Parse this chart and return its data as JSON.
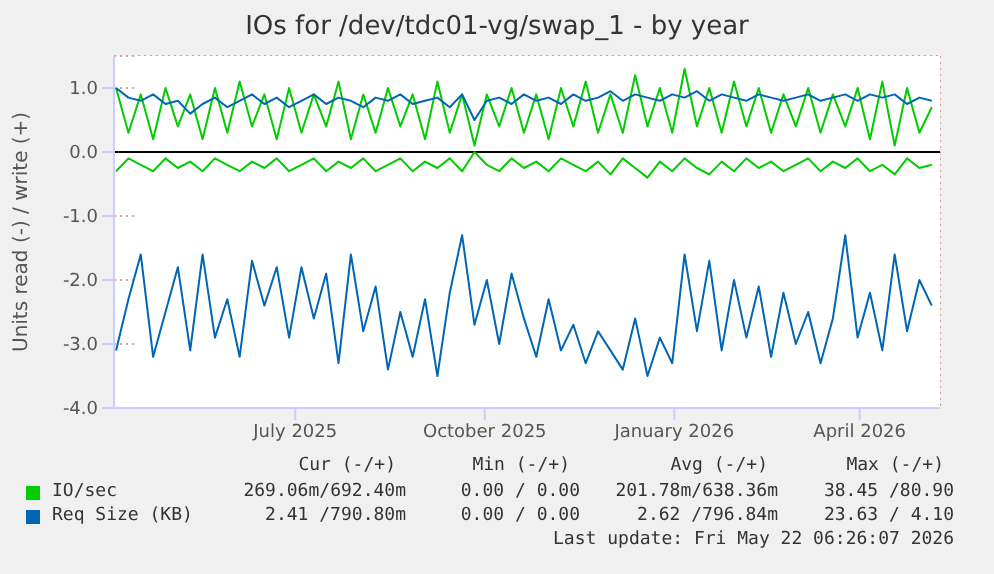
{
  "chart_data": {
    "type": "line",
    "title": "IOs for /dev/tdc01-vg/swap_1 - by year",
    "ylabel": "Units read (-) / write (+)",
    "x": [
      "2025-04-05",
      "2025-04-11",
      "2025-04-17",
      "2025-04-23",
      "2025-04-29",
      "2025-05-05",
      "2025-05-11",
      "2025-05-17",
      "2025-05-23",
      "2025-05-29",
      "2025-06-04",
      "2025-06-10",
      "2025-06-16",
      "2025-06-22",
      "2025-06-28",
      "2025-07-04",
      "2025-07-10",
      "2025-07-16",
      "2025-07-22",
      "2025-07-28",
      "2025-08-03",
      "2025-08-09",
      "2025-08-15",
      "2025-08-21",
      "2025-08-27",
      "2025-09-02",
      "2025-09-08",
      "2025-09-14",
      "2025-09-20",
      "2025-09-26",
      "2025-10-02",
      "2025-10-08",
      "2025-10-14",
      "2025-10-20",
      "2025-10-26",
      "2025-11-01",
      "2025-11-07",
      "2025-11-13",
      "2025-11-19",
      "2025-11-25",
      "2025-12-01",
      "2025-12-07",
      "2025-12-13",
      "2025-12-19",
      "2025-12-25",
      "2025-12-31",
      "2026-01-06",
      "2026-01-12",
      "2026-01-18",
      "2026-01-24",
      "2026-01-30",
      "2026-02-05",
      "2026-02-11",
      "2026-02-17",
      "2026-02-23",
      "2026-03-01",
      "2026-03-07",
      "2026-03-13",
      "2026-03-19",
      "2026-03-25",
      "2026-03-31",
      "2026-04-06",
      "2026-04-12",
      "2026-04-18",
      "2026-04-24",
      "2026-04-30",
      "2026-05-06"
    ],
    "series": [
      {
        "name": "IO/sec",
        "color": "#00cc00",
        "values": [
          1.0,
          0.3,
          0.9,
          0.2,
          1.0,
          0.4,
          0.9,
          0.2,
          1.0,
          0.3,
          1.1,
          0.4,
          0.9,
          0.2,
          1.0,
          0.3,
          0.9,
          0.4,
          1.1,
          0.2,
          0.9,
          0.3,
          1.0,
          0.4,
          0.9,
          0.2,
          1.1,
          0.3,
          0.9,
          0.1,
          0.9,
          0.4,
          1.0,
          0.3,
          0.9,
          0.2,
          1.0,
          0.4,
          1.1,
          0.3,
          0.9,
          0.3,
          1.2,
          0.4,
          1.0,
          0.3,
          1.3,
          0.4,
          1.0,
          0.3,
          1.1,
          0.4,
          1.0,
          0.3,
          0.9,
          0.4,
          1.0,
          0.3,
          0.9,
          0.4,
          1.0,
          0.2,
          1.1,
          0.1,
          1.0,
          0.3,
          0.7
        ]
      },
      {
        "color": "#00cc00",
        "values": [
          -0.3,
          -0.1,
          -0.2,
          -0.3,
          -0.1,
          -0.25,
          -0.15,
          -0.3,
          -0.1,
          -0.2,
          -0.3,
          -0.15,
          -0.25,
          -0.1,
          -0.3,
          -0.2,
          -0.1,
          -0.3,
          -0.15,
          -0.25,
          -0.1,
          -0.3,
          -0.2,
          -0.1,
          -0.3,
          -0.15,
          -0.25,
          -0.1,
          -0.3,
          -0.0,
          -0.2,
          -0.3,
          -0.1,
          -0.25,
          -0.15,
          -0.3,
          -0.1,
          -0.2,
          -0.3,
          -0.15,
          -0.35,
          -0.1,
          -0.25,
          -0.4,
          -0.15,
          -0.3,
          -0.1,
          -0.25,
          -0.35,
          -0.15,
          -0.3,
          -0.1,
          -0.25,
          -0.15,
          -0.3,
          -0.2,
          -0.1,
          -0.3,
          -0.15,
          -0.25,
          -0.1,
          -0.3,
          -0.2,
          -0.35,
          -0.1,
          -0.25,
          -0.2
        ]
      },
      {
        "name": "Req Size (KB)",
        "color": "#0066b3",
        "values": [
          1.0,
          0.85,
          0.8,
          0.9,
          0.75,
          0.8,
          0.6,
          0.75,
          0.85,
          0.7,
          0.8,
          0.9,
          0.75,
          0.85,
          0.7,
          0.8,
          0.9,
          0.75,
          0.85,
          0.8,
          0.7,
          0.85,
          0.8,
          0.9,
          0.75,
          0.8,
          0.85,
          0.7,
          0.9,
          0.5,
          0.8,
          0.85,
          0.75,
          0.9,
          0.8,
          0.85,
          0.75,
          0.9,
          0.8,
          0.85,
          0.95,
          0.8,
          0.9,
          0.85,
          0.8,
          0.9,
          0.85,
          0.95,
          0.8,
          0.9,
          0.85,
          0.8,
          0.9,
          0.85,
          0.8,
          0.85,
          0.9,
          0.8,
          0.85,
          0.9,
          0.8,
          0.9,
          0.85,
          0.9,
          0.75,
          0.85,
          0.8
        ]
      },
      {
        "color": "#0066b3",
        "values": [
          -3.1,
          -2.3,
          -1.6,
          -3.2,
          -2.5,
          -1.8,
          -3.1,
          -1.6,
          -2.9,
          -2.3,
          -3.2,
          -1.7,
          -2.4,
          -1.8,
          -2.9,
          -1.8,
          -2.6,
          -1.9,
          -3.3,
          -1.6,
          -2.8,
          -2.1,
          -3.4,
          -2.5,
          -3.2,
          -2.3,
          -3.5,
          -2.2,
          -1.3,
          -2.7,
          -2.0,
          -3.0,
          -1.9,
          -2.6,
          -3.2,
          -2.3,
          -3.1,
          -2.7,
          -3.3,
          -2.8,
          -3.1,
          -3.4,
          -2.6,
          -3.5,
          -2.9,
          -3.3,
          -1.6,
          -2.8,
          -1.7,
          -3.1,
          -2.0,
          -2.9,
          -2.1,
          -3.2,
          -2.2,
          -3.0,
          -2.5,
          -3.3,
          -2.6,
          -1.3,
          -2.9,
          -2.2,
          -3.1,
          -1.6,
          -2.8,
          -2.0,
          -2.4
        ]
      }
    ],
    "xlim": [
      "2025-04-04",
      "2026-05-10"
    ],
    "xticks": [
      {
        "value": "2025-07-01",
        "label": "July 2025"
      },
      {
        "value": "2025-10-01",
        "label": "October 2025"
      },
      {
        "value": "2026-01-01",
        "label": "January 2026"
      },
      {
        "value": "2026-04-01",
        "label": "April 2026"
      }
    ],
    "ylim": [
      -4,
      1.5
    ],
    "yticks": [
      {
        "value": -4,
        "label": "-4.0"
      },
      {
        "value": -3,
        "label": "-3.0"
      },
      {
        "value": -2,
        "label": "-2.0"
      },
      {
        "value": -1,
        "label": "-1.0"
      },
      {
        "value": 0,
        "label": "0.0"
      },
      {
        "value": 1,
        "label": "1.0"
      }
    ],
    "ref_lines": [
      {
        "axis": "y",
        "value": 0,
        "color": "#000000"
      }
    ],
    "grid": true,
    "legend": "bottom",
    "annotations": [
      "Cur (-/+)",
      "Min (-/+)",
      "Avg (-/+)",
      "Max (-/+)",
      "269.06m/692.40m",
      "0.00 / 0.00",
      "201.78m/638.36m",
      "38.45 /80.90",
      "2.41 /790.80m",
      "0.00 / 0.00",
      "2.62 /796.84m",
      "23.63 / 4.10",
      "Last update: Fri May 22 06:26:07 2026"
    ]
  }
}
